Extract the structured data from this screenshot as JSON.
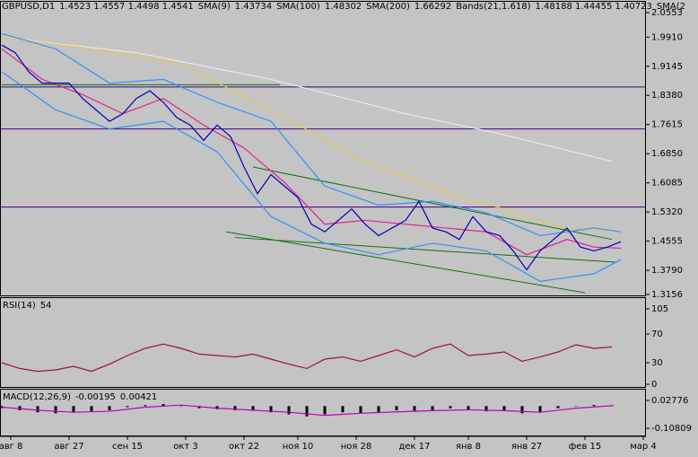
{
  "header": [
    {
      "text": "GBPUSD,D1",
      "color": "#000000"
    },
    {
      "text": "1.4523 1.4557 1.4498 1.4541",
      "color": "#000000"
    },
    {
      "text": "SMA(9)",
      "color": "#000000"
    },
    {
      "text": "1.43734",
      "color": "#c000c0"
    },
    {
      "text": "SMA(100)",
      "color": "#000000"
    },
    {
      "text": "1.48302",
      "color": "#e8d870"
    },
    {
      "text": "SMA(200)",
      "color": "#000000"
    },
    {
      "text": "1.66292",
      "color": "#f0f0f0"
    },
    {
      "text": "Bands(21,1.618)",
      "color": "#000000"
    },
    {
      "text": "1.48188 1.44455 1.40723",
      "color": "#3090ff"
    },
    {
      "text": "SMA(2",
      "color": "#000000"
    }
  ],
  "chart_data": [
    {
      "type": "line",
      "name": "price",
      "xlim": [
        0,
        143
      ],
      "xticks": [
        {
          "value": 2,
          "label": "авг 8"
        },
        {
          "value": 15,
          "label": "авг 27"
        },
        {
          "value": 28,
          "label": "сен 15"
        },
        {
          "value": 41,
          "label": "окт 3"
        },
        {
          "value": 54,
          "label": "окт 22"
        },
        {
          "value": 66,
          "label": "ноя 10"
        },
        {
          "value": 79,
          "label": "ноя 28"
        },
        {
          "value": 92,
          "label": "дек 17"
        },
        {
          "value": 104,
          "label": "янв 8"
        },
        {
          "value": 117,
          "label": "янв 27"
        },
        {
          "value": 130,
          "label": "фев 15"
        },
        {
          "value": 143,
          "label": "мар 4"
        }
      ],
      "ylim": [
        1.3132,
        2.0859
      ],
      "yticks": [
        {
          "value": 2.0553,
          "label": "2.0553"
        },
        {
          "value": 1.991,
          "label": "1.9910"
        },
        {
          "value": 1.9145,
          "label": "1.9145"
        },
        {
          "value": 1.838,
          "label": "1.8380"
        },
        {
          "value": 1.7615,
          "label": "1.7615"
        },
        {
          "value": 1.685,
          "label": "1.6850"
        },
        {
          "value": 1.6085,
          "label": "1.6085"
        },
        {
          "value": 1.532,
          "label": "1.5320"
        },
        {
          "value": 1.4555,
          "label": "1.4555"
        },
        {
          "value": 1.379,
          "label": "1.3790"
        },
        {
          "value": 1.3156,
          "label": "1.3156"
        }
      ],
      "levels": [
        {
          "value": 1.86,
          "color": "#400080"
        },
        {
          "value": 1.75,
          "color": "#400080"
        },
        {
          "value": 1.545,
          "color": "#400080"
        }
      ],
      "trendlines": [
        {
          "x": [
            56,
            136
          ],
          "values": [
            1.65,
            1.46
          ],
          "color": "#107010"
        },
        {
          "x": [
            50,
            130
          ],
          "values": [
            1.48,
            1.32
          ],
          "color": "#107010"
        },
        {
          "x": [
            52,
            137
          ],
          "values": [
            1.465,
            1.4
          ],
          "color": "#107010"
        },
        {
          "x": [
            0,
            62
          ],
          "values": [
            1.866,
            1.866
          ],
          "color": "#107010"
        }
      ],
      "series": [
        {
          "color": "#e8e8f0",
          "x": [
            0,
            30,
            60,
            90,
            110,
            136
          ],
          "values": [
            1.99,
            1.95,
            1.88,
            1.79,
            1.74,
            1.665
          ]
        },
        {
          "color": "#e0c850",
          "x": [
            0,
            20,
            40,
            60,
            80,
            100,
            115,
            125,
            136
          ],
          "values": [
            1.99,
            1.96,
            1.92,
            1.8,
            1.67,
            1.58,
            1.53,
            1.49,
            1.483
          ]
        },
        {
          "color": "#3090ff",
          "x": [
            0,
            12,
            24,
            36,
            48,
            60,
            72,
            84,
            96,
            108,
            120,
            132,
            138
          ],
          "values": [
            2.0,
            1.96,
            1.87,
            1.88,
            1.82,
            1.77,
            1.6,
            1.55,
            1.56,
            1.53,
            1.47,
            1.49,
            1.48
          ]
        },
        {
          "color": "#3090ff",
          "x": [
            0,
            12,
            24,
            36,
            48,
            60,
            72,
            84,
            96,
            108,
            120,
            132,
            138
          ],
          "values": [
            1.9,
            1.8,
            1.75,
            1.77,
            1.69,
            1.52,
            1.45,
            1.42,
            1.45,
            1.43,
            1.35,
            1.37,
            1.407
          ]
        },
        {
          "color": "#e0208a",
          "x": [
            0,
            9,
            18,
            27,
            36,
            45,
            54,
            63,
            72,
            81,
            90,
            99,
            108,
            117,
            126,
            132,
            138
          ],
          "values": [
            1.96,
            1.88,
            1.84,
            1.79,
            1.83,
            1.76,
            1.7,
            1.61,
            1.5,
            1.51,
            1.5,
            1.49,
            1.48,
            1.42,
            1.46,
            1.44,
            1.437
          ]
        },
        {
          "color": "#0000b8",
          "x": [
            0,
            3,
            6,
            9,
            12,
            15,
            18,
            21,
            24,
            27,
            30,
            33,
            36,
            39,
            42,
            45,
            48,
            51,
            54,
            57,
            60,
            63,
            66,
            69,
            72,
            75,
            78,
            81,
            84,
            87,
            90,
            93,
            96,
            99,
            102,
            105,
            108,
            111,
            114,
            117,
            120,
            123,
            126,
            129,
            132,
            135,
            138
          ],
          "values": [
            1.97,
            1.95,
            1.9,
            1.87,
            1.87,
            1.87,
            1.83,
            1.8,
            1.77,
            1.79,
            1.83,
            1.85,
            1.82,
            1.78,
            1.76,
            1.72,
            1.76,
            1.73,
            1.65,
            1.58,
            1.63,
            1.6,
            1.57,
            1.5,
            1.48,
            1.51,
            1.54,
            1.5,
            1.47,
            1.49,
            1.51,
            1.56,
            1.49,
            1.48,
            1.46,
            1.52,
            1.48,
            1.47,
            1.43,
            1.38,
            1.43,
            1.46,
            1.49,
            1.44,
            1.43,
            1.44,
            1.454
          ]
        }
      ]
    },
    {
      "type": "line",
      "name": "rsi",
      "title": "RSI(14)",
      "title_value": 54,
      "ylim": [
        -3.75,
        121.25
      ],
      "yticks": [
        105,
        70,
        30,
        0
      ],
      "series": [
        {
          "color": "#a01040",
          "x": [
            0,
            4,
            8,
            12,
            16,
            20,
            24,
            28,
            32,
            36,
            40,
            44,
            48,
            52,
            56,
            60,
            64,
            68,
            72,
            76,
            80,
            84,
            88,
            92,
            96,
            100,
            104,
            108,
            112,
            116,
            120,
            124,
            128,
            132,
            136
          ],
          "values": [
            30,
            22,
            18,
            20,
            25,
            18,
            28,
            40,
            50,
            56,
            50,
            42,
            40,
            38,
            42,
            35,
            28,
            22,
            35,
            38,
            32,
            40,
            48,
            38,
            50,
            56,
            40,
            42,
            45,
            32,
            38,
            45,
            55,
            50,
            52
          ]
        }
      ]
    },
    {
      "type": "line",
      "name": "macd",
      "title": "MACD(12,26,9)",
      "title_values": [
        -0.00195,
        0.00421
      ],
      "ylim": [
        -0.1431,
        0.0847
      ],
      "yticks": [
        0.02776,
        -0.10809
      ],
      "series": [
        {
          "type": "bar",
          "color": "#000000",
          "x": [
            0,
            4,
            8,
            12,
            16,
            20,
            24,
            28,
            32,
            36,
            40,
            44,
            48,
            52,
            56,
            60,
            64,
            68,
            72,
            76,
            80,
            84,
            88,
            92,
            96,
            100,
            104,
            108,
            112,
            116,
            120,
            124,
            128,
            132,
            136
          ],
          "values": [
            -0.01,
            -0.02,
            -0.03,
            -0.035,
            -0.03,
            -0.025,
            -0.02,
            -0.005,
            0.005,
            0.01,
            0.005,
            -0.01,
            -0.015,
            -0.02,
            -0.02,
            -0.03,
            -0.04,
            -0.05,
            -0.04,
            -0.03,
            -0.035,
            -0.03,
            -0.02,
            -0.025,
            -0.02,
            -0.01,
            -0.02,
            -0.025,
            -0.02,
            -0.035,
            -0.03,
            -0.01,
            0.0,
            0.005,
            0.004
          ]
        },
        {
          "color": "#c000c0",
          "x": [
            0,
            8,
            16,
            24,
            32,
            40,
            48,
            56,
            64,
            72,
            80,
            88,
            96,
            104,
            112,
            120,
            128,
            136
          ],
          "values": [
            -0.005,
            -0.02,
            -0.03,
            -0.025,
            -0.005,
            0.005,
            -0.01,
            -0.02,
            -0.03,
            -0.045,
            -0.035,
            -0.028,
            -0.022,
            -0.018,
            -0.022,
            -0.03,
            -0.01,
            0.002
          ]
        }
      ]
    }
  ]
}
